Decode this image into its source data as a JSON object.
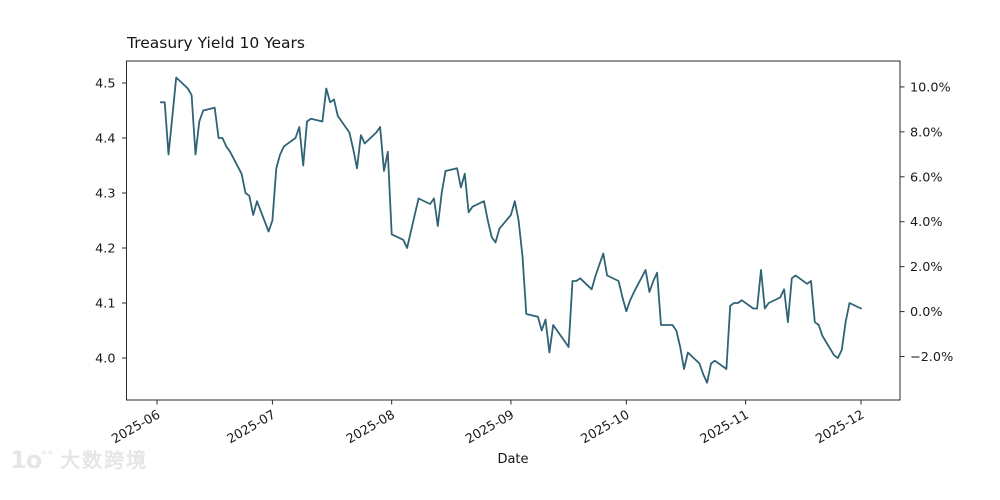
{
  "title": "Treasury Yield 10 Years",
  "x_axis": {
    "label": "Date"
  },
  "watermark": {
    "logo_text": "1o",
    "logo_superscript": "°°",
    "text": "大数跨境"
  },
  "style": {
    "line_color": "#2f6375",
    "axis_color": "#2b2b2b",
    "text_color": "#1a1a1a",
    "watermark_color": "#e6e6e6",
    "background": "#ffffff"
  },
  "chart_data": {
    "type": "line",
    "title": "Treasury Yield 10 Years",
    "xlabel": "Date",
    "ylabel": "",
    "grid": false,
    "legend": null,
    "ylim_left": [
      3.927,
      4.538
    ],
    "x_tick_labels": [
      "2025-06",
      "2025-07",
      "2025-08",
      "2025-09",
      "2025-10",
      "2025-11",
      "2025-12"
    ],
    "left_y_ticks": [
      {
        "label": "4.5",
        "value": 4.5
      },
      {
        "label": "4.4",
        "value": 4.4
      },
      {
        "label": "4.3",
        "value": 4.3
      },
      {
        "label": "4.2",
        "value": 4.2
      },
      {
        "label": "4.1",
        "value": 4.1
      },
      {
        "label": "4.0",
        "value": 4.0
      }
    ],
    "right_y_axis": {
      "unit": "percent_change",
      "reference_value": 4.0844,
      "ticks": [
        {
          "label": "10.0%",
          "percent": 10
        },
        {
          "label": "8.0%",
          "percent": 8
        },
        {
          "label": "6.0%",
          "percent": 6
        },
        {
          "label": "4.0%",
          "percent": 4
        },
        {
          "label": "2.0%",
          "percent": 2
        },
        {
          "label": "0.0%",
          "percent": 0
        },
        {
          "label": "−2.0%",
          "percent": -2
        }
      ]
    },
    "series": [
      {
        "name": "Treasury Yield 10 Years",
        "dates": [
          "2025-06-02",
          "2025-06-03",
          "2025-06-04",
          "2025-06-05",
          "2025-06-06",
          "2025-06-09",
          "2025-06-10",
          "2025-06-11",
          "2025-06-12",
          "2025-06-13",
          "2025-06-16",
          "2025-06-17",
          "2025-06-18",
          "2025-06-19",
          "2025-06-20",
          "2025-06-23",
          "2025-06-24",
          "2025-06-25",
          "2025-06-26",
          "2025-06-27",
          "2025-06-30",
          "2025-07-01",
          "2025-07-02",
          "2025-07-03",
          "2025-07-04",
          "2025-07-07",
          "2025-07-08",
          "2025-07-09",
          "2025-07-10",
          "2025-07-11",
          "2025-07-14",
          "2025-07-15",
          "2025-07-16",
          "2025-07-17",
          "2025-07-18",
          "2025-07-21",
          "2025-07-22",
          "2025-07-23",
          "2025-07-24",
          "2025-07-25",
          "2025-07-28",
          "2025-07-29",
          "2025-07-30",
          "2025-07-31",
          "2025-08-01",
          "2025-08-04",
          "2025-08-05",
          "2025-08-06",
          "2025-08-07",
          "2025-08-08",
          "2025-08-11",
          "2025-08-12",
          "2025-08-13",
          "2025-08-14",
          "2025-08-15",
          "2025-08-18",
          "2025-08-19",
          "2025-08-20",
          "2025-08-21",
          "2025-08-22",
          "2025-08-25",
          "2025-08-26",
          "2025-08-27",
          "2025-08-28",
          "2025-08-29",
          "2025-09-01",
          "2025-09-02",
          "2025-09-03",
          "2025-09-04",
          "2025-09-05",
          "2025-09-08",
          "2025-09-09",
          "2025-09-10",
          "2025-09-11",
          "2025-09-12",
          "2025-09-15",
          "2025-09-16",
          "2025-09-17",
          "2025-09-18",
          "2025-09-19",
          "2025-09-22",
          "2025-09-23",
          "2025-09-24",
          "2025-09-25",
          "2025-09-26",
          "2025-09-29",
          "2025-09-30",
          "2025-10-01",
          "2025-10-02",
          "2025-10-03",
          "2025-10-06",
          "2025-10-07",
          "2025-10-08",
          "2025-10-09",
          "2025-10-10",
          "2025-10-13",
          "2025-10-14",
          "2025-10-15",
          "2025-10-16",
          "2025-10-17",
          "2025-10-20",
          "2025-10-21",
          "2025-10-22",
          "2025-10-23",
          "2025-10-24",
          "2025-10-27",
          "2025-10-28",
          "2025-10-29",
          "2025-10-30",
          "2025-10-31",
          "2025-11-03",
          "2025-11-04",
          "2025-11-05",
          "2025-11-06",
          "2025-11-07",
          "2025-11-10",
          "2025-11-11",
          "2025-11-12",
          "2025-11-13",
          "2025-11-14",
          "2025-11-17",
          "2025-11-18",
          "2025-11-19",
          "2025-11-20",
          "2025-11-21",
          "2025-11-24",
          "2025-11-25",
          "2025-11-26",
          "2025-11-27",
          "2025-11-28",
          "2025-12-01"
        ],
        "values": [
          4.465,
          4.465,
          4.37,
          4.44,
          4.51,
          4.49,
          4.478,
          4.37,
          4.43,
          4.45,
          4.455,
          4.4,
          4.4,
          4.385,
          4.375,
          4.335,
          4.3,
          4.295,
          4.26,
          4.285,
          4.23,
          4.25,
          4.345,
          4.37,
          4.385,
          4.4,
          4.42,
          4.35,
          4.43,
          4.435,
          4.43,
          4.49,
          4.465,
          4.47,
          4.44,
          4.41,
          4.38,
          4.345,
          4.405,
          4.39,
          4.41,
          4.42,
          4.34,
          4.375,
          4.225,
          4.215,
          4.2,
          4.23,
          4.26,
          4.29,
          4.28,
          4.29,
          4.24,
          4.3,
          4.34,
          4.345,
          4.31,
          4.335,
          4.265,
          4.275,
          4.285,
          4.25,
          4.22,
          4.21,
          4.235,
          4.26,
          4.285,
          4.25,
          4.185,
          4.08,
          4.075,
          4.05,
          4.07,
          4.01,
          4.06,
          4.03,
          4.02,
          4.14,
          4.14,
          4.145,
          4.125,
          4.15,
          4.17,
          4.19,
          4.15,
          4.14,
          4.11,
          4.085,
          4.105,
          4.12,
          4.16,
          4.12,
          4.14,
          4.155,
          4.06,
          4.06,
          4.05,
          4.02,
          3.98,
          4.01,
          3.99,
          3.97,
          3.955,
          3.99,
          3.995,
          3.98,
          4.095,
          4.1,
          4.1,
          4.105,
          4.09,
          4.09,
          4.16,
          4.09,
          4.1,
          4.11,
          4.125,
          4.065,
          4.145,
          4.15,
          4.135,
          4.14,
          4.065,
          4.06,
          4.04,
          4.005,
          4.0,
          4.015,
          4.065,
          4.1,
          4.09
        ]
      }
    ]
  }
}
